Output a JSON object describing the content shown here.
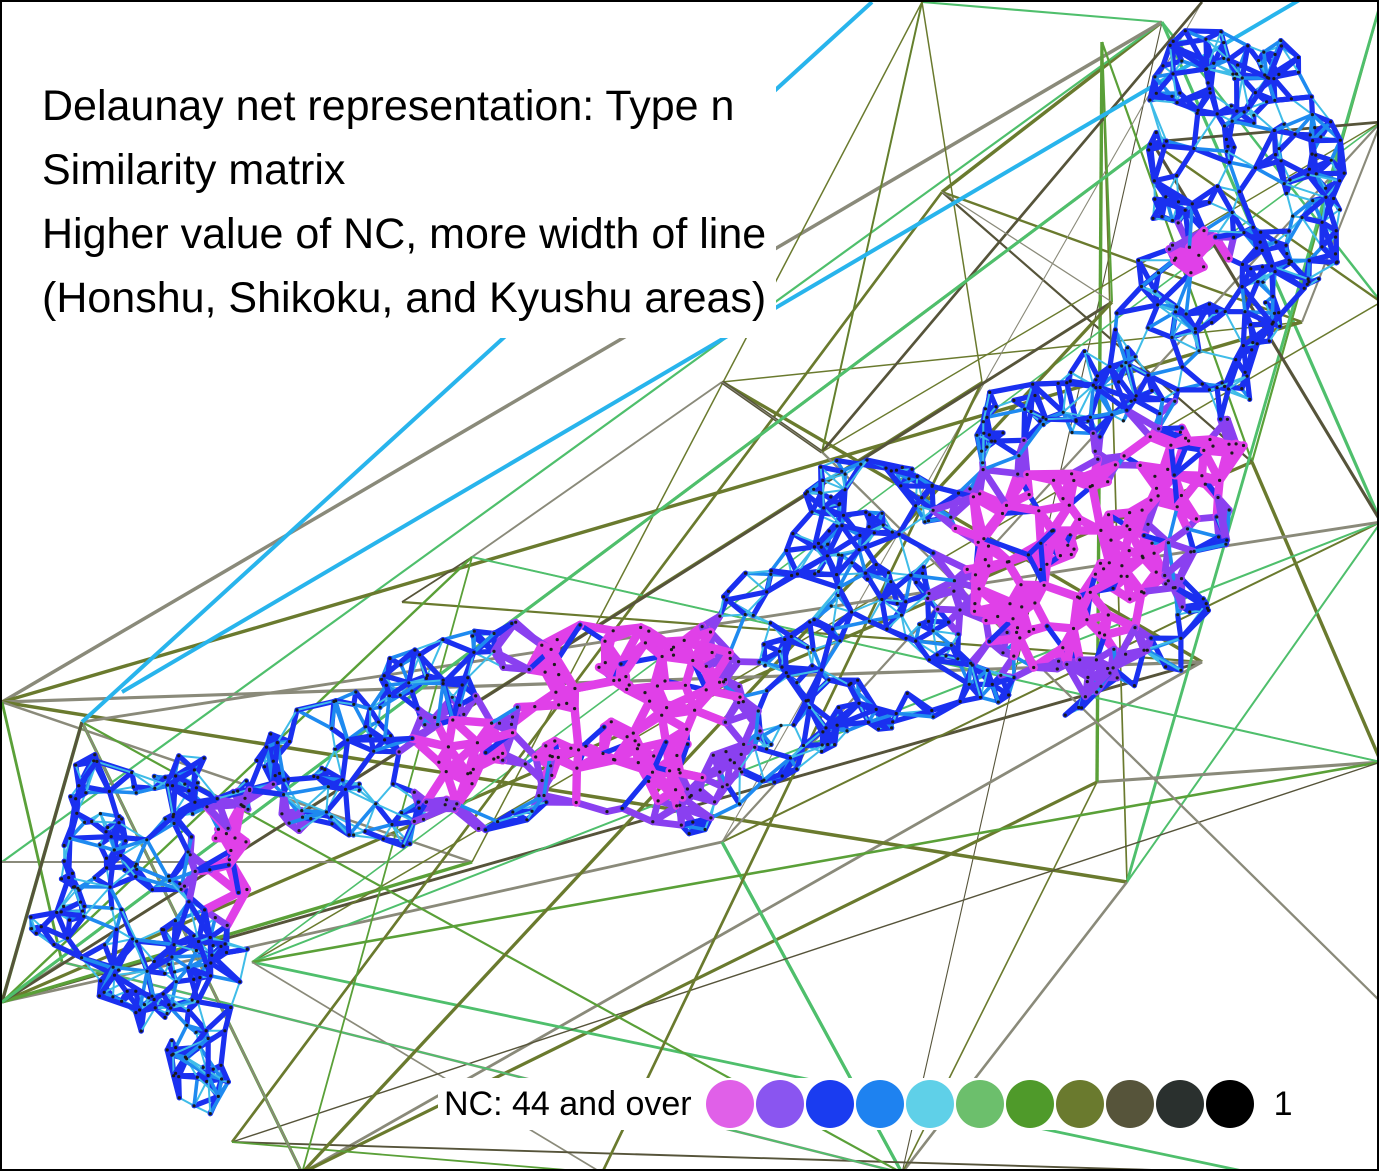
{
  "title_lines": [
    "Delaunay net representation: Type n",
    "Similarity matrix",
    "Higher value of NC, more width of line",
    "(Honshu, Shikoku, and Kyushu areas)"
  ],
  "legend": {
    "max_label": "NC: 44 and over",
    "min_label": "1",
    "colors": [
      "#e060e8",
      "#8a55f0",
      "#1a3cf0",
      "#1e82f0",
      "#5fd0e8",
      "#6cbf6c",
      "#4f9a2a",
      "#6a7a2e",
      "#56543a",
      "#2a302e",
      "#000000"
    ]
  },
  "map": {
    "island_clusters": [
      "Kyushu",
      "Shikoku",
      "Honshu"
    ],
    "edge_colors": {
      "high": "#e040e8",
      "upper": "#8a40f0",
      "mid": "#1a30f0",
      "lower_mid": "#1e8af0",
      "low": "#50c8e8",
      "lowest_green": "#5aa038",
      "faint": "#6a6a4a",
      "grey": "#999999"
    }
  }
}
